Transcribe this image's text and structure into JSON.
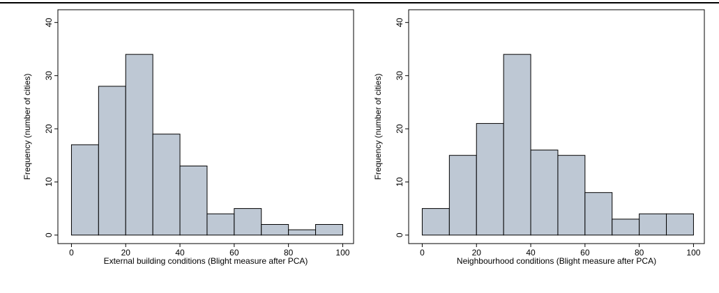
{
  "chart_data": [
    {
      "type": "histogram",
      "xlabel": "External building conditions (Blight measure after PCA)",
      "ylabel": "Frequency (number of cities)",
      "bins": [
        0,
        10,
        20,
        30,
        40,
        50,
        60,
        70,
        80,
        90,
        100
      ],
      "values": [
        17,
        28,
        34,
        19,
        13,
        4,
        5,
        2,
        1,
        2
      ],
      "color": "#bec8d4",
      "xlim": [
        -5,
        104
      ],
      "ylim": [
        -1.6,
        42.4
      ],
      "xticks": [
        0,
        20,
        40,
        60,
        80,
        100
      ],
      "yticks": [
        0,
        10,
        20,
        30,
        40
      ]
    },
    {
      "type": "histogram",
      "xlabel": "Neighbourhood conditions (Blight measure after PCA)",
      "ylabel": "Frequency (number of cities)",
      "bins": [
        0,
        10,
        20,
        30,
        40,
        50,
        60,
        70,
        80,
        90,
        100
      ],
      "values": [
        5,
        15,
        21,
        34,
        16,
        15,
        8,
        3,
        4,
        4
      ],
      "color": "#bec8d4",
      "xlim": [
        -5,
        104
      ],
      "ylim": [
        -1.6,
        42.4
      ],
      "xticks": [
        0,
        20,
        40,
        60,
        80,
        100
      ],
      "yticks": [
        0,
        10,
        20,
        30,
        40
      ]
    }
  ]
}
